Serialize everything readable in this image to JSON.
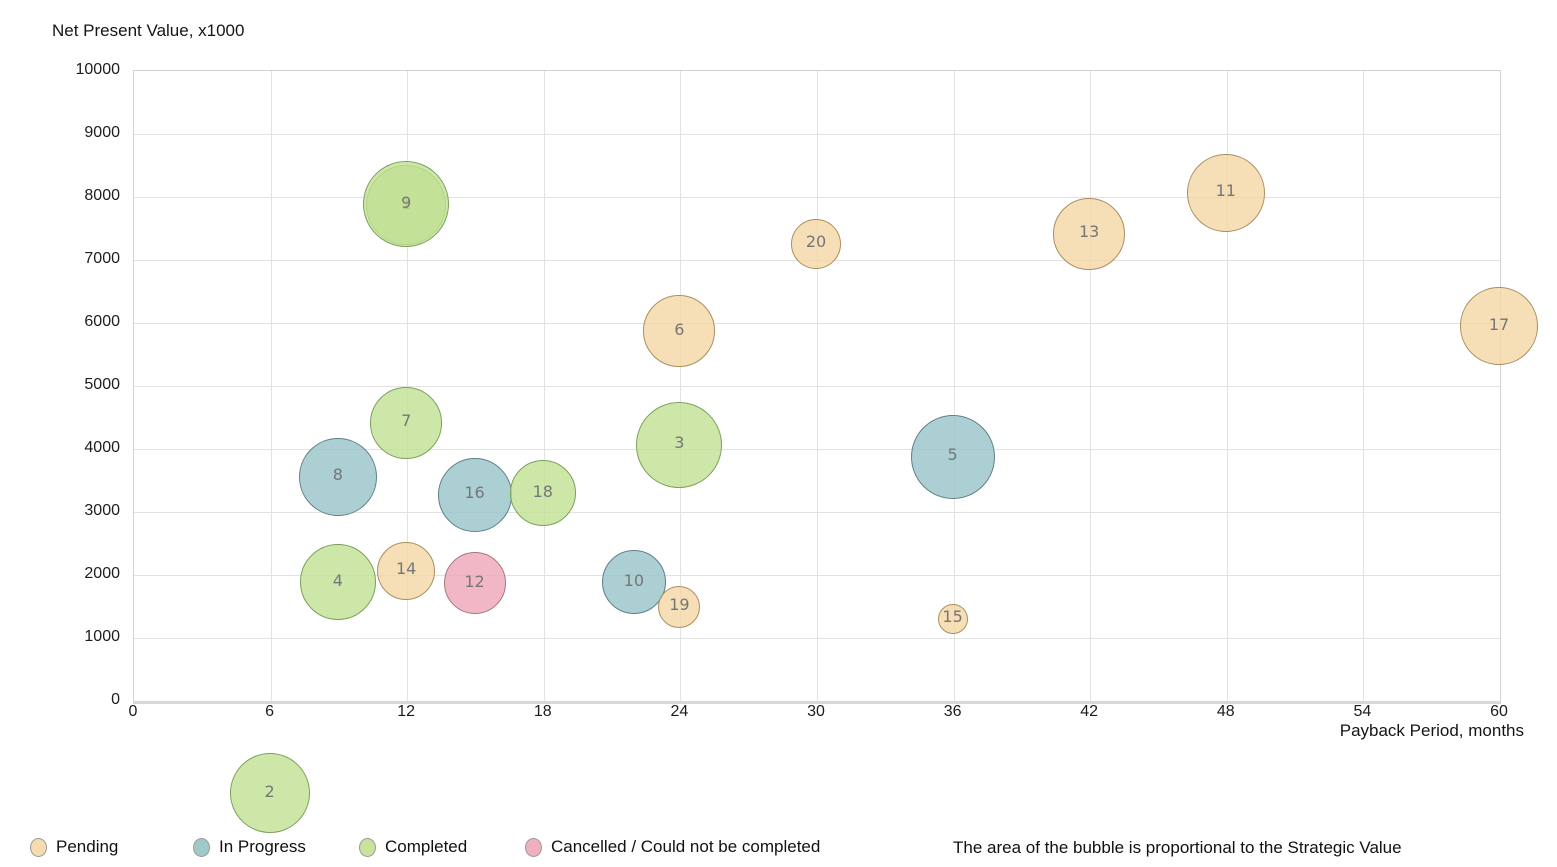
{
  "chart_data": {
    "type": "scatter",
    "subtype": "bubble",
    "ylabel": "Net Present Value, x1000",
    "xlabel": "Payback Period, months",
    "annotation": "The area of the bubble is proportional to the Strategic Value",
    "xlim": [
      0,
      60
    ],
    "ylim": [
      0,
      10000
    ],
    "x_ticks": [
      0,
      6,
      12,
      18,
      24,
      30,
      36,
      42,
      48,
      54,
      60
    ],
    "y_ticks": [
      0,
      1000,
      2000,
      3000,
      4000,
      5000,
      6000,
      7000,
      8000,
      9000,
      10000
    ],
    "grid": true,
    "legend_position": "bottom",
    "size_encoding": "Strategic Value",
    "statuses": {
      "pending": {
        "label": "Pending",
        "fill": "#f4d7a5",
        "stroke": "#a98f5f"
      },
      "inprogress": {
        "label": "In Progress",
        "fill": "#96c3c7",
        "stroke": "#5e8187"
      },
      "completed": {
        "label": "Completed",
        "fill": "#c1e194",
        "stroke": "#7da05c"
      },
      "cancelled": {
        "label": "Cancelled / Could not be completed",
        "fill": "#efa5b5",
        "stroke": "#a07884"
      }
    },
    "legend_order": [
      "pending",
      "inprogress",
      "completed",
      "cancelled"
    ],
    "points": [
      {
        "id": 1,
        "x": 12,
        "y": 7850,
        "r": 40,
        "status": "completed"
      },
      {
        "id": 2,
        "x": 6,
        "y": -1480,
        "r": 40,
        "status": "completed"
      },
      {
        "id": 3,
        "x": 24,
        "y": 4050,
        "r": 43,
        "status": "completed"
      },
      {
        "id": 4,
        "x": 9,
        "y": 1870,
        "r": 38,
        "status": "completed"
      },
      {
        "id": 5,
        "x": 36,
        "y": 3860,
        "r": 42,
        "status": "inprogress"
      },
      {
        "id": 6,
        "x": 24,
        "y": 5850,
        "r": 36,
        "status": "pending"
      },
      {
        "id": 7,
        "x": 12,
        "y": 4400,
        "r": 36,
        "status": "completed"
      },
      {
        "id": 8,
        "x": 9,
        "y": 3540,
        "r": 39,
        "status": "inprogress"
      },
      {
        "id": 9,
        "x": 12,
        "y": 7870,
        "r": 43,
        "status": "completed"
      },
      {
        "id": 10,
        "x": 22,
        "y": 1870,
        "r": 32,
        "status": "inprogress"
      },
      {
        "id": 11,
        "x": 48,
        "y": 8050,
        "r": 39,
        "status": "pending"
      },
      {
        "id": 12,
        "x": 15,
        "y": 1850,
        "r": 31,
        "status": "cancelled"
      },
      {
        "id": 13,
        "x": 42,
        "y": 7400,
        "r": 36,
        "status": "pending"
      },
      {
        "id": 14,
        "x": 12,
        "y": 2050,
        "r": 29,
        "status": "pending"
      },
      {
        "id": 15,
        "x": 36,
        "y": 1290,
        "r": 15,
        "status": "pending"
      },
      {
        "id": 16,
        "x": 15,
        "y": 3260,
        "r": 37,
        "status": "inprogress"
      },
      {
        "id": 17,
        "x": 60,
        "y": 5930,
        "r": 39,
        "status": "pending"
      },
      {
        "id": 18,
        "x": 18,
        "y": 3280,
        "r": 33,
        "status": "completed"
      },
      {
        "id": 19,
        "x": 24,
        "y": 1480,
        "r": 21,
        "status": "pending"
      },
      {
        "id": 20,
        "x": 30,
        "y": 7240,
        "r": 25,
        "status": "pending"
      }
    ]
  }
}
